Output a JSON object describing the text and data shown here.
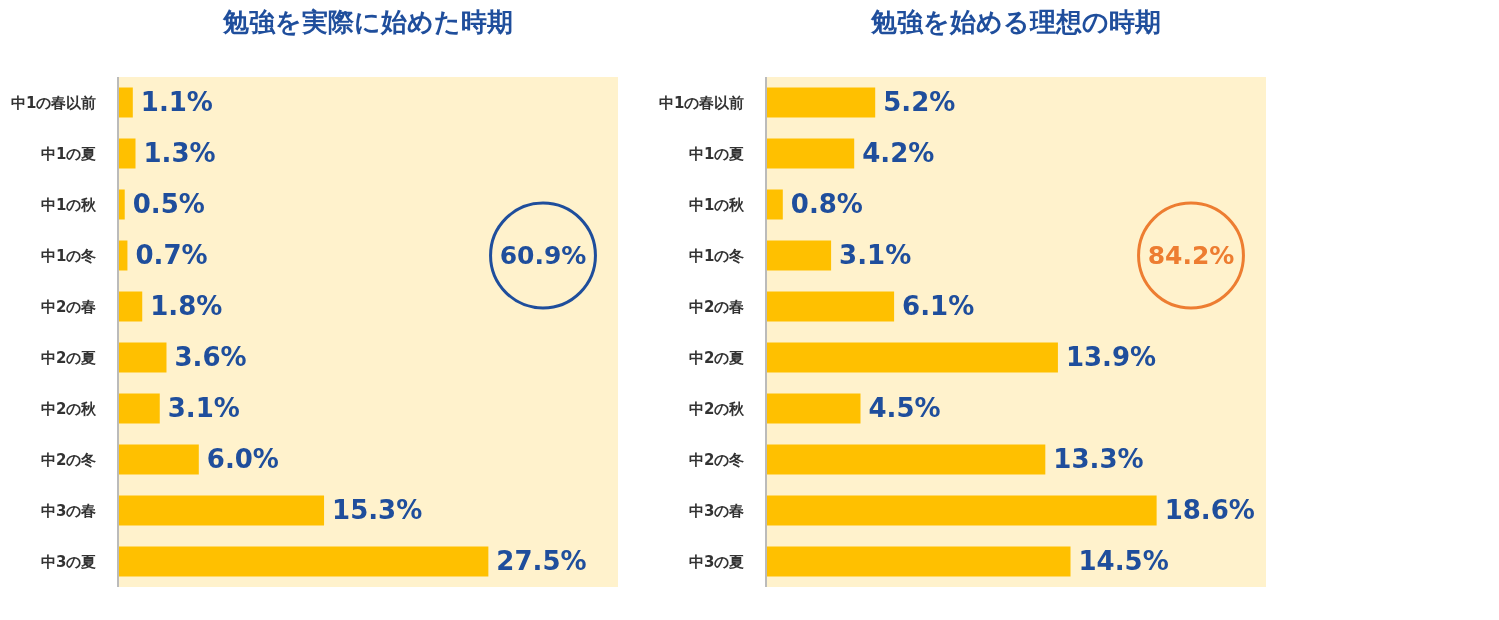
{
  "chart_data": [
    {
      "type": "bar",
      "orientation": "horizontal",
      "title": "勉強を実際に始めた時期",
      "categories": [
        "中1の春以前",
        "中1の夏",
        "中1の秋",
        "中1の冬",
        "中2の春",
        "中2の夏",
        "中2の秋",
        "中2の冬",
        "中3の春",
        "中3の夏"
      ],
      "values": [
        1.1,
        1.3,
        0.5,
        0.7,
        1.8,
        3.6,
        3.1,
        6.0,
        15.3,
        27.5
      ],
      "value_labels": [
        "1.1%",
        "1.3%",
        "0.5%",
        "0.7%",
        "1.8%",
        "3.6%",
        "3.1%",
        "6.0%",
        "15.3%",
        "27.5%"
      ],
      "color": "#ffc000",
      "annotations": [
        "60.9%"
      ]
    },
    {
      "type": "bar",
      "orientation": "horizontal",
      "title": "勉強を始める理想の時期",
      "categories": [
        "中1の春以前",
        "中1の夏",
        "中1の秋",
        "中1の冬",
        "中2の春",
        "中2の夏",
        "中2の秋",
        "中2の冬",
        "中3の春",
        "中3の夏"
      ],
      "values": [
        5.2,
        4.2,
        0.8,
        3.1,
        6.1,
        13.9,
        4.5,
        13.3,
        18.6,
        14.5
      ],
      "value_labels": [
        "5.2%",
        "4.2%",
        "0.8%",
        "3.1%",
        "6.1%",
        "13.9%",
        "4.5%",
        "13.3%",
        "18.6%",
        "14.5%"
      ],
      "color": "#ffc000",
      "annotations": [
        "84.2%"
      ]
    }
  ]
}
